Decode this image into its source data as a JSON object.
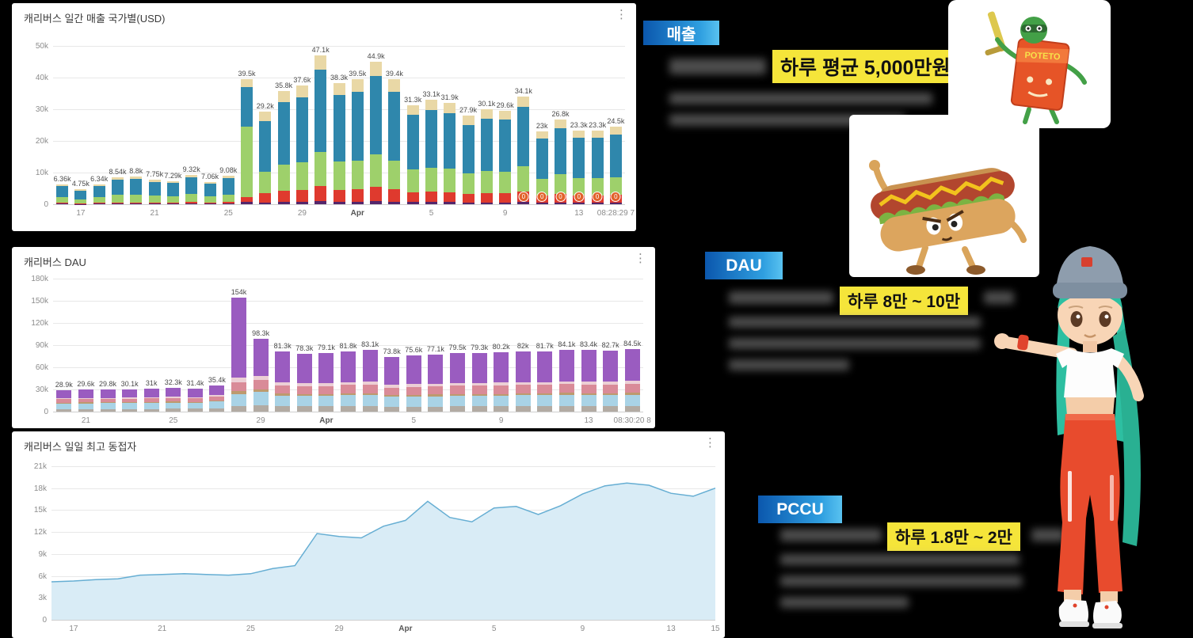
{
  "colors": {
    "background": "#000000",
    "panel": "#ffffff",
    "badge_gradient_start": "#0b57ad",
    "badge_gradient_end": "#2f9fe0",
    "highlight_bg": "#f5e53a",
    "highlight_text": "#111111"
  },
  "icons": {
    "menu": "⋮"
  },
  "sections": {
    "revenue": {
      "badge": "매출",
      "highlight": "하루 평균 5,000만원"
    },
    "dau": {
      "badge": "DAU",
      "highlight": "하루 8만 ~ 10만"
    },
    "pccu": {
      "badge": "PCCU",
      "highlight": "하루 1.8만 ~ 2만"
    }
  },
  "characters": {
    "potato_box_label": "POTETO"
  },
  "chart_data": [
    {
      "type": "bar",
      "stacked": true,
      "title": "캐리버스 일간 매출 국가별(USD)",
      "ylabel": "USD",
      "ylim": [
        0,
        50
      ],
      "unit": "k",
      "grid": true,
      "legend": "none",
      "y_ticks": [
        {
          "label": "0",
          "value": 0
        },
        {
          "label": "10k",
          "value": 10
        },
        {
          "label": "20k",
          "value": 20
        },
        {
          "label": "30k",
          "value": 30
        },
        {
          "label": "40k",
          "value": 40
        },
        {
          "label": "50k",
          "value": 50
        }
      ],
      "values": [
        6.36,
        4.75,
        6.34,
        8.54,
        8.8,
        7.75,
        7.29,
        9.32,
        7.06,
        9.08,
        39.5,
        29.2,
        35.8,
        37.6,
        47.1,
        38.3,
        39.5,
        44.9,
        39.4,
        31.3,
        33.1,
        31.9,
        27.9,
        30.1,
        29.6,
        34.1,
        23,
        26.8,
        23.3,
        23.3,
        24.5
      ],
      "labels": [
        "6.36k",
        "4.75k",
        "6.34k",
        "8.54k",
        "8.8k",
        "7.75k",
        "7.29k",
        "9.32k",
        "7.06k",
        "9.08k",
        "39.5k",
        "29.2k",
        "35.8k",
        "37.6k",
        "47.1k",
        "38.3k",
        "39.5k",
        "44.9k",
        "39.4k",
        "31.3k",
        "33.1k",
        "31.9k",
        "27.9k",
        "30.1k",
        "29.6k",
        "34.1k",
        "23k",
        "26.8k",
        "23.3k",
        "23.3k",
        "24.5k"
      ],
      "x_ticks": [
        {
          "label": "17",
          "index": 1
        },
        {
          "label": "21",
          "index": 5
        },
        {
          "label": "25",
          "index": 9
        },
        {
          "label": "29",
          "index": 13
        },
        {
          "label": "Apr",
          "index": 16,
          "bold": true
        },
        {
          "label": "5",
          "index": 20
        },
        {
          "label": "9",
          "index": 24
        },
        {
          "label": "13",
          "index": 28
        },
        {
          "label": "08:28:29 7",
          "index": 30
        }
      ],
      "stack_colors": [
        "#54266b",
        "#df3a2e",
        "#9ed06b",
        "#2f87ac",
        "#e9d8a6"
      ],
      "stack_profiles": {
        "small": [
          0.02,
          0.05,
          0.27,
          0.58,
          0.08
        ],
        "green": [
          0.02,
          0.04,
          0.56,
          0.32,
          0.06
        ],
        "normal": [
          0.02,
          0.1,
          0.23,
          0.55,
          0.1
        ]
      },
      "bar_profiles": [
        "small",
        "small",
        "small",
        "small",
        "small",
        "small",
        "small",
        "small",
        "small",
        "small",
        "green",
        "normal",
        "normal",
        "normal",
        "normal",
        "normal",
        "normal",
        "normal",
        "normal",
        "normal",
        "normal",
        "normal",
        "normal",
        "normal",
        "normal",
        "normal",
        "normal",
        "normal",
        "normal",
        "normal",
        "normal"
      ],
      "zero_markers": [
        25,
        26,
        27,
        28,
        29,
        30
      ]
    },
    {
      "type": "bar",
      "stacked": true,
      "title": "캐리버스 DAU",
      "ylim": [
        0,
        180
      ],
      "unit": "k",
      "grid": true,
      "legend": "none",
      "y_ticks": [
        {
          "label": "0",
          "value": 0
        },
        {
          "label": "30k",
          "value": 30
        },
        {
          "label": "60k",
          "value": 60
        },
        {
          "label": "90k",
          "value": 90
        },
        {
          "label": "120k",
          "value": 120
        },
        {
          "label": "150k",
          "value": 150
        },
        {
          "label": "180k",
          "value": 180
        }
      ],
      "values": [
        28.9,
        29.6,
        29.8,
        30.1,
        31,
        32.3,
        31.4,
        35.4,
        154,
        98.3,
        81.3,
        78.3,
        79.1,
        81.8,
        83.1,
        73.8,
        75.6,
        77.1,
        79.5,
        79.3,
        80.2,
        82,
        81.7,
        84.1,
        83.4,
        82.7,
        84.5
      ],
      "labels": [
        "28.9k",
        "29.6k",
        "29.8k",
        "30.1k",
        "31k",
        "32.3k",
        "31.4k",
        "35.4k",
        "154k",
        "98.3k",
        "81.3k",
        "78.3k",
        "79.1k",
        "81.8k",
        "83.1k",
        "73.8k",
        "75.6k",
        "77.1k",
        "79.5k",
        "79.3k",
        "80.2k",
        "82k",
        "81.7k",
        "84.1k",
        "83.4k",
        "82.7k",
        "84.5k"
      ],
      "x_ticks": [
        {
          "label": "21",
          "index": 1
        },
        {
          "label": "25",
          "index": 5
        },
        {
          "label": "29",
          "index": 9
        },
        {
          "label": "Apr",
          "index": 12,
          "bold": true
        },
        {
          "label": "5",
          "index": 16
        },
        {
          "label": "9",
          "index": 20
        },
        {
          "label": "13",
          "index": 24
        },
        {
          "label": "08:30:20 8",
          "index": 26
        }
      ],
      "stack_colors": [
        "#b2aba3",
        "#a9d3e6",
        "#bd9a6e",
        "#d98b98",
        "#eccfd5",
        "#9a5cc0"
      ],
      "stack_profiles": {
        "small": [
          0.12,
          0.26,
          0.04,
          0.16,
          0.05,
          0.37
        ],
        "normal": [
          0.09,
          0.18,
          0.03,
          0.14,
          0.05,
          0.51
        ],
        "spike": [
          0.05,
          0.1,
          0.03,
          0.08,
          0.04,
          0.7
        ]
      },
      "bar_profiles": [
        "small",
        "small",
        "small",
        "small",
        "small",
        "small",
        "small",
        "small",
        "spike",
        "normal",
        "normal",
        "normal",
        "normal",
        "normal",
        "normal",
        "normal",
        "normal",
        "normal",
        "normal",
        "normal",
        "normal",
        "normal",
        "normal",
        "normal",
        "normal",
        "normal",
        "normal"
      ],
      "zero_markers": []
    },
    {
      "type": "area",
      "title": "캐리버스 일일 최고 동접자",
      "ylim": [
        0,
        21
      ],
      "unit": "k",
      "grid": true,
      "legend": "none",
      "line_color": "#66aed3",
      "fill_color": "#d9ecf6",
      "y_ticks": [
        {
          "label": "0",
          "value": 0
        },
        {
          "label": "3k",
          "value": 3
        },
        {
          "label": "6k",
          "value": 6
        },
        {
          "label": "9k",
          "value": 9
        },
        {
          "label": "12k",
          "value": 12
        },
        {
          "label": "15k",
          "value": 15
        },
        {
          "label": "18k",
          "value": 18
        },
        {
          "label": "21k",
          "value": 21
        }
      ],
      "values": [
        5.2,
        5.3,
        5.5,
        5.6,
        6.1,
        6.2,
        6.3,
        6.2,
        6.1,
        6.3,
        7.0,
        7.4,
        11.8,
        11.4,
        11.2,
        12.8,
        13.6,
        16.2,
        14.0,
        13.4,
        15.3,
        15.5,
        14.4,
        15.6,
        17.2,
        18.3,
        18.7,
        18.4,
        17.3,
        16.9,
        18.0
      ],
      "x_ticks": [
        {
          "label": "17",
          "index": 1
        },
        {
          "label": "21",
          "index": 5
        },
        {
          "label": "25",
          "index": 9
        },
        {
          "label": "29",
          "index": 13
        },
        {
          "label": "Apr",
          "index": 16,
          "bold": true
        },
        {
          "label": "5",
          "index": 20
        },
        {
          "label": "9",
          "index": 24
        },
        {
          "label": "13",
          "index": 28
        },
        {
          "label": "15",
          "index": 30
        }
      ]
    }
  ]
}
